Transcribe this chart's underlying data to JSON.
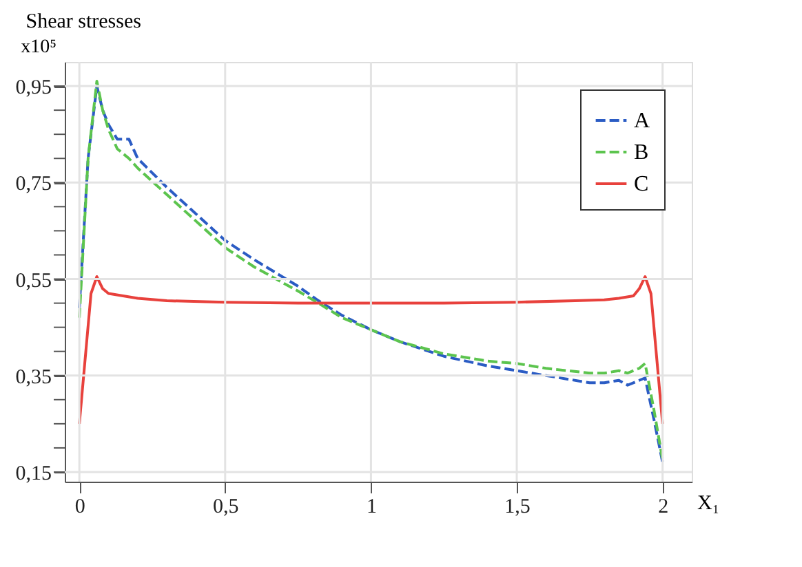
{
  "chart_data": {
    "type": "line",
    "title": "Shear stresses",
    "ylabel": "x10⁵",
    "xlabel": "X₁",
    "xlim": [
      -0.05,
      2.1
    ],
    "ylim": [
      0.13,
      1.0
    ],
    "xticks": [
      0,
      {
        "value": 0.5,
        "label": "0,5"
      },
      1,
      {
        "value": 1.5,
        "label": "1,5"
      },
      2
    ],
    "yticks": [
      {
        "value": 0.15,
        "label": "0,15"
      },
      {
        "value": 0.2,
        "label": null
      },
      {
        "value": 0.25,
        "label": null
      },
      {
        "value": 0.3,
        "label": null
      },
      {
        "value": 0.35,
        "label": "0,35"
      },
      {
        "value": 0.4,
        "label": null
      },
      {
        "value": 0.45,
        "label": null
      },
      {
        "value": 0.5,
        "label": null
      },
      {
        "value": 0.55,
        "label": "0,55"
      },
      {
        "value": 0.6,
        "label": null
      },
      {
        "value": 0.65,
        "label": null
      },
      {
        "value": 0.7,
        "label": null
      },
      {
        "value": 0.75,
        "label": "0,75"
      },
      {
        "value": 0.8,
        "label": null
      },
      {
        "value": 0.85,
        "label": null
      },
      {
        "value": 0.9,
        "label": null
      },
      {
        "value": 0.95,
        "label": "0,95"
      }
    ],
    "grid": true,
    "legend": "top right",
    "marker": "none",
    "series": [
      {
        "name": "A",
        "color": "#2b5cc4",
        "line_style": "dashed",
        "x": [
          0,
          0.03,
          0.06,
          0.08,
          0.1,
          0.13,
          0.17,
          0.2,
          0.3,
          0.4,
          0.5,
          0.6,
          0.75,
          0.82,
          0.9,
          1.0,
          1.1,
          1.25,
          1.4,
          1.5,
          1.6,
          1.75,
          1.8,
          1.85,
          1.88,
          1.92,
          1.94,
          1.97,
          2.0
        ],
        "values": [
          0.49,
          0.8,
          0.95,
          0.9,
          0.87,
          0.84,
          0.84,
          0.8,
          0.74,
          0.685,
          0.63,
          0.59,
          0.535,
          0.505,
          0.475,
          0.445,
          0.42,
          0.39,
          0.37,
          0.36,
          0.35,
          0.335,
          0.335,
          0.34,
          0.33,
          0.34,
          0.345,
          0.26,
          0.17
        ]
      },
      {
        "name": "B",
        "color": "#5cc44e",
        "line_style": "dashed",
        "x": [
          0,
          0.03,
          0.06,
          0.08,
          0.1,
          0.13,
          0.17,
          0.2,
          0.3,
          0.4,
          0.5,
          0.6,
          0.75,
          0.82,
          0.9,
          1.0,
          1.1,
          1.25,
          1.4,
          1.5,
          1.6,
          1.75,
          1.8,
          1.85,
          1.88,
          1.92,
          1.94,
          1.97,
          2.0
        ],
        "values": [
          0.47,
          0.8,
          0.96,
          0.9,
          0.86,
          0.82,
          0.8,
          0.78,
          0.725,
          0.67,
          0.615,
          0.575,
          0.525,
          0.5,
          0.47,
          0.445,
          0.42,
          0.395,
          0.38,
          0.375,
          0.365,
          0.355,
          0.355,
          0.36,
          0.355,
          0.365,
          0.375,
          0.28,
          0.175
        ]
      },
      {
        "name": "C",
        "color": "#e8413c",
        "line_style": "solid",
        "x": [
          0,
          0.04,
          0.06,
          0.08,
          0.1,
          0.15,
          0.2,
          0.3,
          0.5,
          0.75,
          1.0,
          1.25,
          1.5,
          1.7,
          1.8,
          1.85,
          1.9,
          1.92,
          1.94,
          1.96,
          2.0
        ],
        "values": [
          0.25,
          0.52,
          0.555,
          0.53,
          0.52,
          0.515,
          0.51,
          0.505,
          0.502,
          0.5,
          0.5,
          0.5,
          0.502,
          0.505,
          0.507,
          0.51,
          0.515,
          0.53,
          0.555,
          0.52,
          0.25
        ]
      }
    ]
  }
}
